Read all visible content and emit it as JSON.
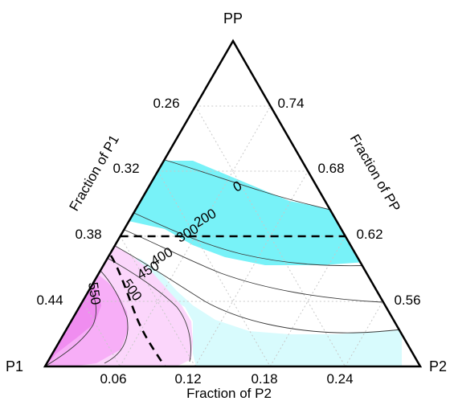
{
  "chart_data": {
    "type": "ternary-contour",
    "vertices": {
      "top": "PP",
      "left": "P1",
      "right": "P2"
    },
    "axis_titles": {
      "left": "Fraction of P1",
      "right": "Fraction of PP",
      "bottom": "Fraction of P2"
    },
    "axis_ranges": {
      "P1": [
        0.2,
        0.5
      ],
      "PP": [
        0.5,
        0.8
      ],
      "P2": [
        0.0,
        0.3
      ]
    },
    "ticks": {
      "left_P1": [
        "0.26",
        "0.32",
        "0.38",
        "0.44"
      ],
      "right_PP": [
        "0.74",
        "0.68",
        "0.62",
        "0.56"
      ],
      "bottom_P2": [
        "0.06",
        "0.12",
        "0.18",
        "0.24"
      ]
    },
    "grid": true,
    "contour_levels": [
      0,
      200,
      300,
      400,
      450,
      500,
      550
    ],
    "contour_labels": [
      "0",
      "200",
      "300",
      "400",
      "450",
      "500",
      "550"
    ],
    "constraints": [
      {
        "style": "dashed",
        "description": "PP = 0.62"
      },
      {
        "style": "dashed",
        "description": "curve near P1 corner"
      }
    ],
    "colors": {
      "cyan_strong": "#78f2f8",
      "cyan_light": "#d8fbfd",
      "pink_light": "#fbd6fb",
      "pink_mid": "#f7aef7",
      "magenta": "#f08df0"
    }
  }
}
